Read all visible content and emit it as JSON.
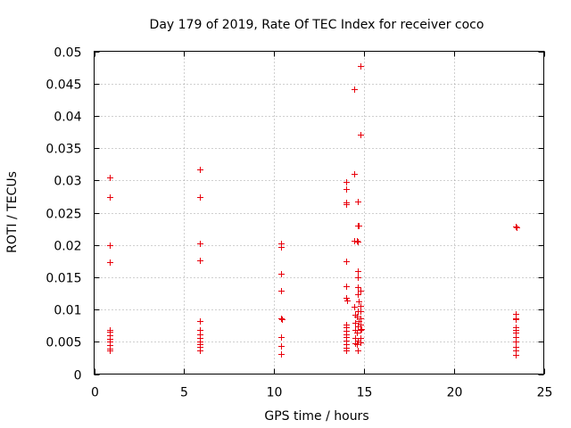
{
  "chart_data": {
    "type": "scatter",
    "title": "Day 179 of 2019, Rate Of TEC Index for receiver coco",
    "xlabel": "GPS time / hours",
    "ylabel": "ROTI / TECUs",
    "xlim": [
      0,
      25
    ],
    "ylim": [
      0,
      0.05
    ],
    "xticks": [
      "0",
      "5",
      "10",
      "15",
      "20",
      "25"
    ],
    "xtick_values": [
      0,
      5,
      10,
      15,
      20,
      25
    ],
    "yticks": [
      "0",
      "0.005",
      "0.01",
      "0.015",
      "0.02",
      "0.025",
      "0.03",
      "0.035",
      "0.04",
      "0.045",
      "0.05"
    ],
    "ytick_values": [
      0,
      0.005,
      0.01,
      0.015,
      0.02,
      0.025,
      0.03,
      0.035,
      0.04,
      0.045,
      0.05
    ],
    "grid": true,
    "marker": "+",
    "color": "#e8000b",
    "series": [
      {
        "name": "ROTI",
        "points": [
          [
            0.85,
            0.0305
          ],
          [
            0.85,
            0.0274
          ],
          [
            0.85,
            0.02
          ],
          [
            0.85,
            0.0174
          ],
          [
            0.85,
            0.0068
          ],
          [
            0.85,
            0.0065
          ],
          [
            0.85,
            0.006
          ],
          [
            0.85,
            0.0055
          ],
          [
            0.85,
            0.005
          ],
          [
            0.85,
            0.0045
          ],
          [
            0.85,
            0.004
          ],
          [
            0.85,
            0.0036
          ],
          [
            5.9,
            0.0317
          ],
          [
            5.9,
            0.0274
          ],
          [
            5.9,
            0.0202
          ],
          [
            5.9,
            0.0176
          ],
          [
            5.9,
            0.0082
          ],
          [
            5.9,
            0.0068
          ],
          [
            5.9,
            0.0062
          ],
          [
            5.9,
            0.0056
          ],
          [
            5.9,
            0.005
          ],
          [
            5.9,
            0.0046
          ],
          [
            5.9,
            0.0042
          ],
          [
            5.9,
            0.0037
          ],
          [
            10.4,
            0.0203
          ],
          [
            10.4,
            0.0197
          ],
          [
            10.4,
            0.0155
          ],
          [
            10.4,
            0.0129
          ],
          [
            10.4,
            0.0086
          ],
          [
            10.45,
            0.0085
          ],
          [
            10.4,
            0.0057
          ],
          [
            10.4,
            0.0044
          ],
          [
            10.4,
            0.0031
          ],
          [
            14.0,
            0.0297
          ],
          [
            14.0,
            0.0287
          ],
          [
            14.0,
            0.0266
          ],
          [
            14.0,
            0.0263
          ],
          [
            14.0,
            0.0175
          ],
          [
            14.0,
            0.0136
          ],
          [
            14.0,
            0.0118
          ],
          [
            14.05,
            0.0114
          ],
          [
            14.0,
            0.0077
          ],
          [
            14.0,
            0.0072
          ],
          [
            14.0,
            0.0067
          ],
          [
            14.0,
            0.0062
          ],
          [
            14.0,
            0.0057
          ],
          [
            14.0,
            0.0052
          ],
          [
            14.0,
            0.0046
          ],
          [
            14.0,
            0.0041
          ],
          [
            14.0,
            0.0037
          ],
          [
            14.45,
            0.0441
          ],
          [
            14.45,
            0.031
          ],
          [
            14.45,
            0.0206
          ],
          [
            14.45,
            0.0104
          ],
          [
            14.5,
            0.0092
          ],
          [
            14.5,
            0.008
          ],
          [
            14.5,
            0.0068
          ],
          [
            14.5,
            0.0056
          ],
          [
            14.5,
            0.0048
          ],
          [
            14.65,
            0.0267
          ],
          [
            14.65,
            0.023
          ],
          [
            14.7,
            0.023
          ],
          [
            14.6,
            0.0207
          ],
          [
            14.65,
            0.0205
          ],
          [
            14.65,
            0.016
          ],
          [
            14.65,
            0.015
          ],
          [
            14.65,
            0.0134
          ],
          [
            14.65,
            0.0124
          ],
          [
            14.7,
            0.0113
          ],
          [
            14.65,
            0.0098
          ],
          [
            14.6,
            0.0089
          ],
          [
            14.7,
            0.0082
          ],
          [
            14.65,
            0.0074
          ],
          [
            14.6,
            0.0064
          ],
          [
            14.65,
            0.0052
          ],
          [
            14.6,
            0.0046
          ],
          [
            14.65,
            0.0036
          ],
          [
            14.8,
            0.0477
          ],
          [
            14.8,
            0.0371
          ],
          [
            14.8,
            0.0129
          ],
          [
            14.8,
            0.0105
          ],
          [
            14.8,
            0.0098
          ],
          [
            14.8,
            0.0086
          ],
          [
            14.8,
            0.0076
          ],
          [
            14.85,
            0.007
          ],
          [
            14.8,
            0.0069
          ],
          [
            14.8,
            0.0056
          ],
          [
            14.8,
            0.0049
          ],
          [
            23.45,
            0.0228
          ],
          [
            23.5,
            0.0227
          ],
          [
            23.45,
            0.0093
          ],
          [
            23.45,
            0.0087
          ],
          [
            23.45,
            0.0085
          ],
          [
            23.45,
            0.0072
          ],
          [
            23.45,
            0.0068
          ],
          [
            23.45,
            0.0064
          ],
          [
            23.45,
            0.0058
          ],
          [
            23.45,
            0.005
          ],
          [
            23.45,
            0.0042
          ],
          [
            23.45,
            0.0037
          ],
          [
            23.45,
            0.003
          ]
        ]
      }
    ]
  }
}
